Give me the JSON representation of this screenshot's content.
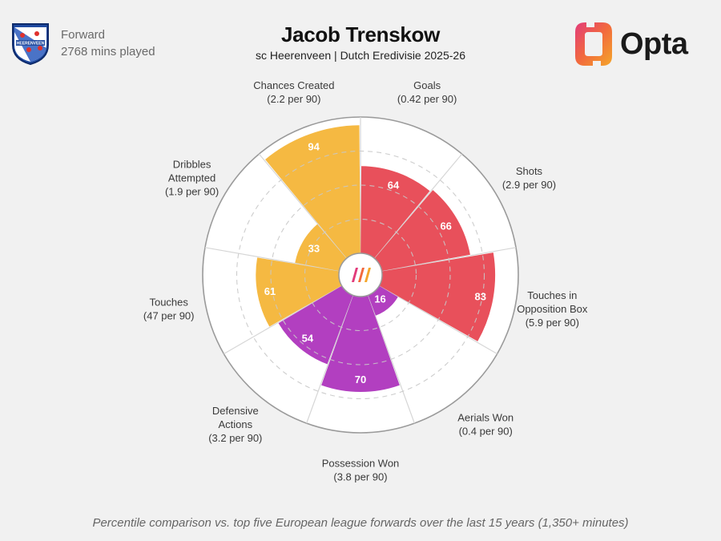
{
  "header": {
    "position": "Forward",
    "minutes": "2768 mins played",
    "player_name": "Jacob Trenskow",
    "team_league": "sc Heerenveen | Dutch Eredivisie 2025-26",
    "brand": "Opta",
    "crest_text": "HEERENVEEN"
  },
  "footnote": "Percentile comparison vs. top five European league forwards over the last 15 years (1,350+ minutes)",
  "colors": {
    "attacking": "#e8505b",
    "possession": "#f5b942",
    "defending": "#b23fc0",
    "background": "#f1f1f1",
    "grid": "#cfcfcf"
  },
  "chart_data": {
    "type": "polar-bar",
    "rmax": 100,
    "center_icon": "opta-logo-icon",
    "metrics": [
      {
        "label": [
          "Goals",
          "(0.42 per 90)"
        ],
        "value": 64,
        "group": "attacking"
      },
      {
        "label": [
          "Shots",
          "(2.9 per 90)"
        ],
        "value": 66,
        "group": "attacking"
      },
      {
        "label": [
          "Touches in",
          "Opposition Box",
          "(5.9 per 90)"
        ],
        "value": 83,
        "group": "attacking"
      },
      {
        "label": [
          "Aerials Won",
          "(0.4 per 90)"
        ],
        "value": 16,
        "group": "defending"
      },
      {
        "label": [
          "Possession Won",
          "(3.8 per 90)"
        ],
        "value": 70,
        "group": "defending"
      },
      {
        "label": [
          "Defensive",
          "Actions",
          "(3.2 per 90)"
        ],
        "value": 54,
        "group": "defending"
      },
      {
        "label": [
          "Touches",
          "(47 per 90)"
        ],
        "value": 61,
        "group": "possession"
      },
      {
        "label": [
          "Dribbles",
          "Attempted",
          "(1.9 per 90)"
        ],
        "value": 33,
        "group": "possession"
      },
      {
        "label": [
          "Chances Created",
          "(2.2 per 90)"
        ],
        "value": 94,
        "group": "possession"
      }
    ]
  }
}
